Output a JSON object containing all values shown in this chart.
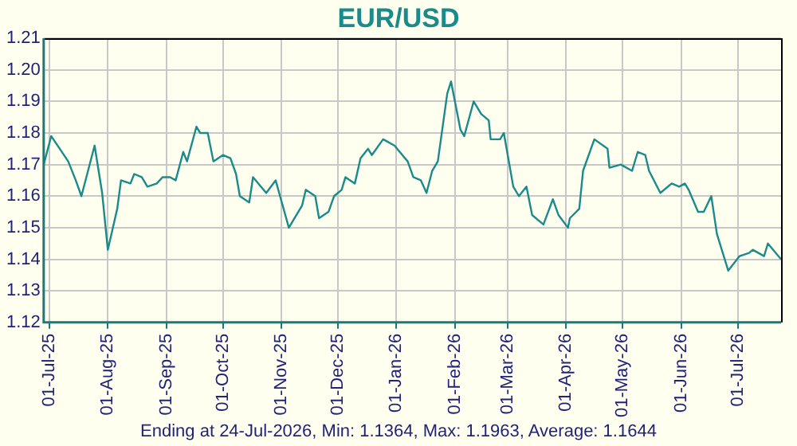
{
  "chart_data": {
    "type": "line",
    "title": "EUR/USD",
    "annotations": [
      "Ending at 24-Jul-2026, Min: 1.1364, Max: 1.1963, Average: 1.1644"
    ],
    "x": [
      "2025-06-28",
      "2025-07-02",
      "2025-07-11",
      "2025-07-15",
      "2025-07-18",
      "2025-07-25",
      "2025-07-29",
      "2025-08-01",
      "2025-08-06",
      "2025-08-08",
      "2025-08-13",
      "2025-08-15",
      "2025-08-19",
      "2025-08-22",
      "2025-08-27",
      "2025-08-30",
      "2025-09-03",
      "2025-09-06",
      "2025-09-10",
      "2025-09-12",
      "2025-09-17",
      "2025-09-19",
      "2025-09-23",
      "2025-09-26",
      "2025-10-01",
      "2025-10-05",
      "2025-10-08",
      "2025-10-10",
      "2025-10-15",
      "2025-10-17",
      "2025-10-24",
      "2025-10-29",
      "2025-11-05",
      "2025-11-12",
      "2025-11-14",
      "2025-11-19",
      "2025-11-21",
      "2025-11-26",
      "2025-11-29",
      "2025-12-03",
      "2025-12-05",
      "2025-12-10",
      "2025-12-13",
      "2025-12-17",
      "2025-12-19",
      "2025-12-25",
      "2025-12-31",
      "2026-01-07",
      "2026-01-10",
      "2026-01-14",
      "2026-01-17",
      "2026-01-20",
      "2026-01-23",
      "2026-01-28",
      "2026-01-30",
      "2026-02-04",
      "2026-02-06",
      "2026-02-11",
      "2026-02-15",
      "2026-02-19",
      "2026-02-20",
      "2026-02-25",
      "2026-02-27",
      "2026-03-04",
      "2026-03-07",
      "2026-03-11",
      "2026-03-14",
      "2026-03-20",
      "2026-03-25",
      "2026-03-28",
      "2026-04-02",
      "2026-04-03",
      "2026-04-08",
      "2026-04-10",
      "2026-04-16",
      "2026-04-23",
      "2026-04-24",
      "2026-04-30",
      "2026-05-06",
      "2026-05-09",
      "2026-05-13",
      "2026-05-15",
      "2026-05-21",
      "2026-05-27",
      "2026-05-31",
      "2026-06-03",
      "2026-06-05",
      "2026-06-10",
      "2026-06-13",
      "2026-06-17",
      "2026-06-20",
      "2026-06-26",
      "2026-07-02",
      "2026-07-07",
      "2026-07-09",
      "2026-07-15",
      "2026-07-17",
      "2026-07-24"
    ],
    "series": [
      {
        "color": "#1a8a8a",
        "values": [
          1.17,
          1.179,
          1.171,
          1.165,
          1.16,
          1.176,
          1.161,
          1.143,
          1.156,
          1.165,
          1.164,
          1.167,
          1.166,
          1.163,
          1.164,
          1.166,
          1.166,
          1.165,
          1.174,
          1.171,
          1.182,
          1.18,
          1.18,
          1.171,
          1.173,
          1.172,
          1.167,
          1.16,
          1.158,
          1.166,
          1.161,
          1.165,
          1.15,
          1.157,
          1.162,
          1.16,
          1.153,
          1.155,
          1.16,
          1.162,
          1.166,
          1.164,
          1.172,
          1.175,
          1.173,
          1.178,
          1.176,
          1.171,
          1.166,
          1.165,
          1.161,
          1.168,
          1.171,
          1.1925,
          1.1963,
          1.181,
          1.179,
          1.19,
          1.186,
          1.184,
          1.178,
          1.178,
          1.18,
          1.163,
          1.16,
          1.163,
          1.154,
          1.151,
          1.159,
          1.154,
          1.15,
          1.153,
          1.156,
          1.168,
          1.178,
          1.175,
          1.169,
          1.17,
          1.168,
          1.174,
          1.173,
          1.168,
          1.161,
          1.164,
          1.163,
          1.164,
          1.162,
          1.155,
          1.155,
          1.16,
          1.148,
          1.1364,
          1.141,
          1.142,
          1.143,
          1.141,
          1.145,
          1.14
        ]
      }
    ],
    "xlim": [
      "2025-06-28",
      "2026-07-24"
    ],
    "xticks": [
      {
        "value": "2025-07-01",
        "label": "01-Jul-25"
      },
      {
        "value": "2025-08-01",
        "label": "01-Aug-25"
      },
      {
        "value": "2025-09-01",
        "label": "01-Sep-25"
      },
      {
        "value": "2025-10-01",
        "label": "01-Oct-25"
      },
      {
        "value": "2025-11-01",
        "label": "01-Nov-25"
      },
      {
        "value": "2025-12-01",
        "label": "01-Dec-25"
      },
      {
        "value": "2026-01-01",
        "label": "01-Jan-26"
      },
      {
        "value": "2026-02-01",
        "label": "01-Feb-26"
      },
      {
        "value": "2026-03-01",
        "label": "01-Mar-26"
      },
      {
        "value": "2026-04-01",
        "label": "01-Apr-26"
      },
      {
        "value": "2026-05-01",
        "label": "01-May-26"
      },
      {
        "value": "2026-06-01",
        "label": "01-Jun-26"
      },
      {
        "value": "2026-07-01",
        "label": "01-Jul-26"
      }
    ],
    "ylim": [
      1.12,
      1.21
    ],
    "yticks": [
      1.12,
      1.13,
      1.14,
      1.15,
      1.16,
      1.17,
      1.18,
      1.19,
      {
        "value": 1.2,
        "label": "1.20"
      },
      1.21
    ],
    "grid": true,
    "legend": false,
    "marker": "none",
    "line_style": "solid"
  }
}
